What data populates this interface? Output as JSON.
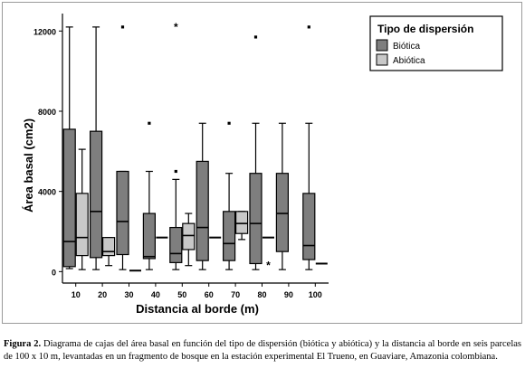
{
  "chart_data": {
    "type": "boxplot",
    "xlabel": "Distancia al borde (m)",
    "ylabel": "Área basal (cm2)",
    "yticks": [
      0,
      4000,
      8000,
      12000
    ],
    "ylim": [
      -300,
      12600
    ],
    "categories": [
      "10",
      "20",
      "30",
      "40",
      "50",
      "60",
      "70",
      "80",
      "90",
      "100"
    ],
    "legend": {
      "title": "Tipo de dispersión",
      "placement": "top-right",
      "entries": [
        "Biótica",
        "Abiótica"
      ]
    },
    "colors": {
      "Biótica": "#7e7e7e",
      "Abiótica": "#c8c8c8"
    },
    "series": [
      {
        "name": "Biótica",
        "boxes": [
          {
            "category": "10",
            "min": 150,
            "q1": 250,
            "median": 1500,
            "q3": 7100,
            "max": 12200
          },
          {
            "category": "20",
            "min": 100,
            "q1": 700,
            "median": 3000,
            "q3": 7000,
            "max": 12200
          },
          {
            "category": "30",
            "min": 100,
            "q1": 850,
            "median": 2500,
            "q3": 5000,
            "max": 5000,
            "outliers": [
              {
                "value": 12200,
                "marker": "square"
              }
            ]
          },
          {
            "category": "40",
            "min": 100,
            "q1": 650,
            "median": 750,
            "q3": 2900,
            "max": 5000,
            "outliers": [
              {
                "value": 7400,
                "marker": "square"
              }
            ]
          },
          {
            "category": "50",
            "min": 100,
            "q1": 450,
            "median": 900,
            "q3": 2200,
            "max": 4600,
            "outliers": [
              {
                "value": 5000,
                "marker": "square"
              },
              {
                "value": 12200,
                "marker": "star"
              }
            ]
          },
          {
            "category": "60",
            "min": 100,
            "q1": 550,
            "median": 2200,
            "q3": 5500,
            "max": 7400
          },
          {
            "category": "70",
            "min": 100,
            "q1": 550,
            "median": 1400,
            "q3": 3000,
            "max": 4900,
            "outliers": [
              {
                "value": 7400,
                "marker": "square"
              }
            ]
          },
          {
            "category": "80",
            "min": 100,
            "q1": 400,
            "median": 2400,
            "q3": 4900,
            "max": 7400,
            "outliers": [
              {
                "value": 11700,
                "marker": "square"
              }
            ]
          },
          {
            "category": "90",
            "min": 100,
            "q1": 1000,
            "median": 2900,
            "q3": 4900,
            "max": 7400
          },
          {
            "category": "100",
            "min": 100,
            "q1": 600,
            "median": 1300,
            "q3": 3900,
            "max": 7400,
            "outliers": [
              {
                "value": 12200,
                "marker": "square"
              }
            ]
          }
        ]
      },
      {
        "name": "Abiótica",
        "boxes": [
          {
            "category": "10",
            "min": 100,
            "q1": 800,
            "median": 1700,
            "q3": 3900,
            "max": 6100
          },
          {
            "category": "20",
            "min": 300,
            "q1": 800,
            "median": 1000,
            "q3": 1700,
            "max": 1700
          },
          {
            "category": "30",
            "min": 50,
            "q1": 50,
            "median": 50,
            "q3": 50,
            "max": 50
          },
          {
            "category": "40",
            "min": 1700,
            "q1": 1700,
            "median": 1700,
            "q3": 1700,
            "max": 1700
          },
          {
            "category": "50",
            "min": 300,
            "q1": 1100,
            "median": 1800,
            "q3": 2400,
            "max": 2900
          },
          {
            "category": "60",
            "min": 1700,
            "q1": 1700,
            "median": 1700,
            "q3": 1700,
            "max": 1700
          },
          {
            "category": "70",
            "min": 1600,
            "q1": 1900,
            "median": 2400,
            "q3": 3000,
            "max": 3000
          },
          {
            "category": "80",
            "min": 1700,
            "q1": 1700,
            "median": 1700,
            "q3": 1700,
            "max": 1700,
            "outliers": [
              {
                "value": 300,
                "marker": "star"
              }
            ]
          },
          {
            "category": "90",
            "min": null,
            "q1": null,
            "median": null,
            "q3": null,
            "max": null
          },
          {
            "category": "100",
            "min": 400,
            "q1": 400,
            "median": 400,
            "q3": 400,
            "max": 400
          }
        ]
      }
    ]
  },
  "caption": {
    "label": "Figura 2.",
    "text": "Diagrama de cajas del área basal en función del tipo de dispersión (biótica y abiótica) y la distancia al borde en seis parcelas de 100 x 10 m, levantadas en un fragmento de bosque en la estación experimental El Trueno, en Guaviare, Amazonia colombiana."
  }
}
